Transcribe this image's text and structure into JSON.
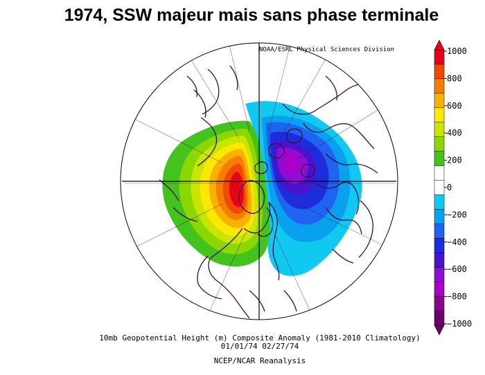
{
  "title": "1974, SSW majeur mais sans phase terminale",
  "credit": "NOAA/ESRL Physical Sciences Division",
  "caption": {
    "line1": "10mb Geopotential Height (m) Composite Anomaly (1981-2010 Climatology)",
    "line2": "01/01/74 02/27/74",
    "line3": "NCEP/NCAR Reanalysis"
  },
  "colorbar": {
    "ticks": [
      "1000",
      "800",
      "600",
      "400",
      "200",
      "0",
      "-200",
      "-400",
      "-600",
      "-800",
      "-1000"
    ],
    "colors": [
      "#e8001a",
      "#f04a00",
      "#f57d00",
      "#f9b100",
      "#fce800",
      "#c8e600",
      "#8cd700",
      "#44c21e",
      "#ffffff",
      "#ffffff",
      "#10c8f0",
      "#0aa0f0",
      "#1e64f0",
      "#1e2cdc",
      "#4a12cc",
      "#8c0ed2",
      "#a800c8",
      "#8c0090",
      "#6a0068"
    ]
  },
  "map": {
    "projection": "north polar stereographic",
    "features": [
      "positive anomaly over Pacific/western North America",
      "negative anomaly over Eurasia/north Atlantic"
    ]
  }
}
